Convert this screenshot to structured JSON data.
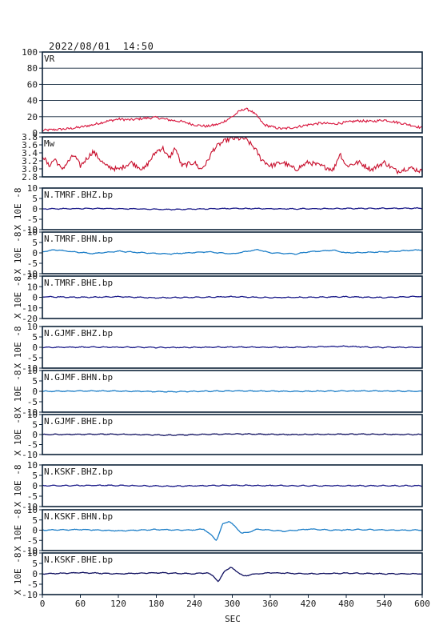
{
  "header": {
    "timestamp": "2022/08/01  14:50"
  },
  "colors": {
    "frame": "#0d2238",
    "vr": "#d8143c",
    "mw": "#c8102e",
    "dark": "#1c1c8a",
    "light": "#1e7fc8",
    "navy": "#101060"
  },
  "chart_data": {
    "type": "line",
    "xlabel": "SEC",
    "xlim": [
      0,
      600
    ],
    "xticks": [
      "0",
      "60",
      "120",
      "180",
      "240",
      "300",
      "360",
      "420",
      "480",
      "540",
      "600"
    ],
    "panels": [
      {
        "label": "VR",
        "ylim": [
          0,
          100
        ],
        "yticks": [
          "0",
          "20",
          "40",
          "60",
          "80",
          "100"
        ],
        "ylabel": "",
        "grid": true,
        "color": "#d8143c",
        "series": [
          [
            0,
            3
          ],
          [
            20,
            4
          ],
          [
            40,
            5
          ],
          [
            60,
            7
          ],
          [
            80,
            10
          ],
          [
            100,
            14
          ],
          [
            120,
            17
          ],
          [
            140,
            16
          ],
          [
            160,
            18
          ],
          [
            180,
            19
          ],
          [
            200,
            16
          ],
          [
            220,
            14
          ],
          [
            240,
            10
          ],
          [
            260,
            8
          ],
          [
            280,
            11
          ],
          [
            300,
            20
          ],
          [
            310,
            26
          ],
          [
            320,
            30
          ],
          [
            330,
            27
          ],
          [
            340,
            20
          ],
          [
            350,
            10
          ],
          [
            360,
            8
          ],
          [
            370,
            6
          ],
          [
            380,
            5
          ],
          [
            400,
            7
          ],
          [
            420,
            10
          ],
          [
            440,
            12
          ],
          [
            460,
            11
          ],
          [
            480,
            13
          ],
          [
            500,
            15
          ],
          [
            520,
            14
          ],
          [
            540,
            16
          ],
          [
            560,
            13
          ],
          [
            580,
            10
          ],
          [
            600,
            6
          ]
        ]
      },
      {
        "label": "Mw",
        "ylim": [
          2.8,
          3.9
        ],
        "yticks": [
          "2.8",
          "3.0",
          "3.2",
          "3.4",
          "3.6",
          "3.8"
        ],
        "ylabel": "",
        "grid": false,
        "color": "#c8102e",
        "series": [
          [
            0,
            3.4
          ],
          [
            10,
            3.1
          ],
          [
            20,
            3.3
          ],
          [
            30,
            3.0
          ],
          [
            50,
            3.4
          ],
          [
            60,
            3.1
          ],
          [
            80,
            3.5
          ],
          [
            100,
            3.1
          ],
          [
            120,
            3.0
          ],
          [
            140,
            3.2
          ],
          [
            160,
            3.0
          ],
          [
            180,
            3.5
          ],
          [
            190,
            3.6
          ],
          [
            200,
            3.3
          ],
          [
            210,
            3.6
          ],
          [
            220,
            3.1
          ],
          [
            240,
            3.2
          ],
          [
            250,
            3.0
          ],
          [
            260,
            3.2
          ],
          [
            270,
            3.55
          ],
          [
            280,
            3.7
          ],
          [
            290,
            3.8
          ],
          [
            300,
            3.85
          ],
          [
            320,
            3.85
          ],
          [
            335,
            3.6
          ],
          [
            345,
            3.3
          ],
          [
            360,
            3.1
          ],
          [
            380,
            3.2
          ],
          [
            400,
            3.0
          ],
          [
            420,
            3.2
          ],
          [
            440,
            3.1
          ],
          [
            460,
            3.0
          ],
          [
            470,
            3.45
          ],
          [
            480,
            3.1
          ],
          [
            500,
            3.2
          ],
          [
            520,
            3.0
          ],
          [
            540,
            3.2
          ],
          [
            560,
            2.95
          ],
          [
            580,
            3.05
          ],
          [
            600,
            2.95
          ]
        ]
      },
      {
        "label": "N.TMRF.BHZ.bp",
        "ylim": [
          -10,
          10
        ],
        "yticks": [
          "-10",
          "-5",
          "0",
          "5",
          "10"
        ],
        "ylabel": "X 10E -8",
        "grid": false,
        "color": "#1c1c8a",
        "series": [
          [
            0,
            0
          ],
          [
            100,
            0.2
          ],
          [
            200,
            -0.3
          ],
          [
            300,
            0.2
          ],
          [
            400,
            0
          ],
          [
            500,
            0.2
          ],
          [
            600,
            0.3
          ]
        ]
      },
      {
        "label": "N.TMRF.BHN.bp",
        "ylim": [
          -10,
          10
        ],
        "yticks": [
          "-10",
          "-5",
          "0",
          "5",
          "10"
        ],
        "ylabel": "X 10E -8",
        "grid": false,
        "color": "#1e7fc8",
        "series": [
          [
            0,
            0.5
          ],
          [
            20,
            1.5
          ],
          [
            40,
            0.8
          ],
          [
            80,
            -0.3
          ],
          [
            120,
            0.8
          ],
          [
            160,
            0
          ],
          [
            200,
            -0.5
          ],
          [
            260,
            0.5
          ],
          [
            300,
            -0.5
          ],
          [
            340,
            1.6
          ],
          [
            360,
            0
          ],
          [
            400,
            -0.5
          ],
          [
            420,
            0.5
          ],
          [
            460,
            1.3
          ],
          [
            480,
            0
          ],
          [
            540,
            0.5
          ],
          [
            600,
            1.5
          ]
        ]
      },
      {
        "label": "N.TMRF.BHE.bp",
        "ylim": [
          -20,
          20
        ],
        "yticks": [
          "-20",
          "-10",
          "0",
          "10",
          "20"
        ],
        "ylabel": "X 10E -8",
        "grid": false,
        "color": "#1c1c8a",
        "series": [
          [
            0,
            0.5
          ],
          [
            60,
            0
          ],
          [
            120,
            0.5
          ],
          [
            180,
            -0.5
          ],
          [
            240,
            0
          ],
          [
            300,
            0.5
          ],
          [
            360,
            -0.3
          ],
          [
            420,
            0
          ],
          [
            480,
            0.5
          ],
          [
            540,
            -0.3
          ],
          [
            600,
            1
          ]
        ]
      },
      {
        "label": "N.GJMF.BHZ.bp",
        "ylim": [
          -10,
          10
        ],
        "yticks": [
          "-10",
          "-5",
          "0",
          "5",
          "10"
        ],
        "ylabel": "X 10E -8",
        "grid": false,
        "color": "#1c1c8a",
        "series": [
          [
            0,
            0
          ],
          [
            100,
            0.1
          ],
          [
            200,
            -0.1
          ],
          [
            300,
            0.1
          ],
          [
            400,
            0
          ],
          [
            480,
            0.5
          ],
          [
            520,
            0
          ],
          [
            600,
            0
          ]
        ]
      },
      {
        "label": "N.GJMF.BHN.bp",
        "ylim": [
          -10,
          10
        ],
        "yticks": [
          "-10",
          "-5",
          "0",
          "5",
          "10"
        ],
        "ylabel": "X 10E -8",
        "grid": false,
        "color": "#1e7fc8",
        "series": [
          [
            0,
            0
          ],
          [
            100,
            0.2
          ],
          [
            200,
            -0.2
          ],
          [
            300,
            0.2
          ],
          [
            400,
            0
          ],
          [
            500,
            0.2
          ],
          [
            600,
            0
          ]
        ]
      },
      {
        "label": "N.GJMF.BHE.bp",
        "ylim": [
          -10,
          10
        ],
        "yticks": [
          "-10",
          "-5",
          "0",
          "5",
          "10"
        ],
        "ylabel": "X 10E -8",
        "grid": false,
        "color": "#101060",
        "series": [
          [
            0,
            0
          ],
          [
            100,
            0.2
          ],
          [
            200,
            -0.3
          ],
          [
            300,
            0.3
          ],
          [
            400,
            0
          ],
          [
            500,
            0.2
          ],
          [
            600,
            0
          ]
        ]
      },
      {
        "label": "N.KSKF.BHZ.bp",
        "ylim": [
          -10,
          10
        ],
        "yticks": [
          "-10",
          "-5",
          "0",
          "5",
          "10"
        ],
        "ylabel": "X 10E -8",
        "grid": false,
        "color": "#1c1c8a",
        "series": [
          [
            0,
            0
          ],
          [
            100,
            0.2
          ],
          [
            200,
            -0.2
          ],
          [
            300,
            0.2
          ],
          [
            400,
            0
          ],
          [
            500,
            0
          ],
          [
            600,
            0
          ]
        ]
      },
      {
        "label": "N.KSKF.BHN.bp",
        "ylim": [
          -10,
          10
        ],
        "yticks": [
          "-10",
          "-5",
          "0",
          "5",
          "10"
        ],
        "ylabel": "X 10E -8",
        "grid": false,
        "color": "#1e7fc8",
        "series": [
          [
            0,
            0
          ],
          [
            60,
            0.3
          ],
          [
            120,
            -0.3
          ],
          [
            180,
            0.3
          ],
          [
            230,
            0
          ],
          [
            255,
            0.5
          ],
          [
            265,
            -2
          ],
          [
            275,
            -5
          ],
          [
            285,
            3
          ],
          [
            295,
            4.5
          ],
          [
            305,
            1.5
          ],
          [
            315,
            -1.5
          ],
          [
            325,
            -1
          ],
          [
            340,
            0.5
          ],
          [
            380,
            -0.5
          ],
          [
            420,
            0.5
          ],
          [
            460,
            0
          ],
          [
            500,
            0.3
          ],
          [
            560,
            0
          ],
          [
            600,
            0
          ]
        ]
      },
      {
        "label": "N.KSKF.BHE.bp",
        "ylim": [
          -10,
          10
        ],
        "yticks": [
          "-10",
          "-5",
          "0",
          "5",
          "10"
        ],
        "ylabel": "X 10E -8",
        "grid": false,
        "color": "#101060",
        "series": [
          [
            0,
            0
          ],
          [
            60,
            0.5
          ],
          [
            120,
            0
          ],
          [
            180,
            0.5
          ],
          [
            240,
            0
          ],
          [
            260,
            0.5
          ],
          [
            270,
            -1
          ],
          [
            278,
            -4
          ],
          [
            288,
            1.5
          ],
          [
            298,
            3
          ],
          [
            308,
            1
          ],
          [
            318,
            -1.2
          ],
          [
            330,
            -0.3
          ],
          [
            360,
            0.5
          ],
          [
            420,
            0
          ],
          [
            480,
            0.3
          ],
          [
            540,
            0
          ],
          [
            600,
            0
          ]
        ]
      }
    ]
  }
}
